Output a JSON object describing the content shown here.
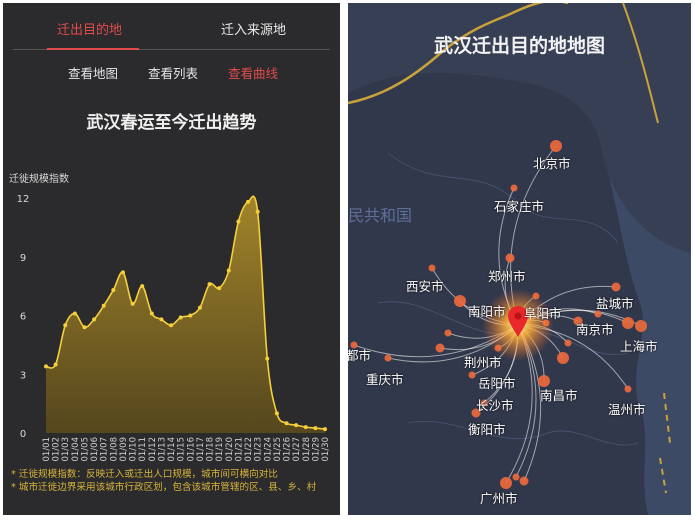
{
  "left_panel": {
    "tabs": [
      {
        "label": "迁出目的地",
        "active": true
      },
      {
        "label": "迁入来源地",
        "active": false
      }
    ],
    "view_buttons": [
      {
        "label": "查看地图",
        "active": false
      },
      {
        "label": "查看列表",
        "active": false
      },
      {
        "label": "查看曲线",
        "active": true
      }
    ],
    "notes": [
      "* 迁徙规模指数：反映迁入或迁出人口规模，城市间可横向对比",
      "* 城市迁徙边界采用该城市行政区划，包含该城市管辖的区、县、乡、村"
    ],
    "accent_color": "#e14b4b",
    "line_color": "#f5d03a"
  },
  "chart_data": {
    "type": "area",
    "title": "武汉春运至今迁出趋势",
    "ylabel": "迁徙规模指数",
    "xlabel": "",
    "ylim": [
      0,
      12
    ],
    "yticks": [
      0,
      3,
      6,
      9,
      12
    ],
    "grid": false,
    "categories": [
      "01/01",
      "01/02",
      "01/03",
      "01/04",
      "01/05",
      "01/06",
      "01/07",
      "01/08",
      "01/09",
      "01/10",
      "01/11",
      "01/12",
      "01/13",
      "01/14",
      "01/15",
      "01/16",
      "01/17",
      "01/18",
      "01/19",
      "01/20",
      "01/21",
      "01/22",
      "01/23",
      "01/24",
      "01/25",
      "01/26",
      "01/27",
      "01/28",
      "01/29",
      "01/30"
    ],
    "values": [
      3.4,
      3.5,
      5.5,
      6.1,
      5.4,
      5.8,
      6.5,
      7.3,
      8.2,
      6.6,
      7.5,
      6.1,
      5.8,
      5.5,
      5.9,
      6.0,
      6.4,
      7.6,
      7.4,
      8.3,
      10.8,
      11.8,
      11.3,
      3.8,
      1.0,
      0.5,
      0.4,
      0.3,
      0.25,
      0.2
    ]
  },
  "right_panel": {
    "title": "武汉迁出目的地地图",
    "watermark": "民共和国",
    "cities": [
      {
        "name": "北京市"
      },
      {
        "name": "石家庄市"
      },
      {
        "name": "西安市"
      },
      {
        "name": "郑州市"
      },
      {
        "name": "南阳市"
      },
      {
        "name": "阜阳市"
      },
      {
        "name": "盐城市"
      },
      {
        "name": "南京市"
      },
      {
        "name": "上海市"
      },
      {
        "name": "荆州市"
      },
      {
        "name": "重庆市"
      },
      {
        "name": "岳阳市"
      },
      {
        "name": "南昌市"
      },
      {
        "name": "温州市"
      },
      {
        "name": "长沙市"
      },
      {
        "name": "衡阳市"
      },
      {
        "name": "广州市"
      },
      {
        "name": "都市"
      }
    ],
    "origin_marker": "map-pin",
    "flow_color": "#ffffff",
    "dot_color": "#f06a3c"
  }
}
